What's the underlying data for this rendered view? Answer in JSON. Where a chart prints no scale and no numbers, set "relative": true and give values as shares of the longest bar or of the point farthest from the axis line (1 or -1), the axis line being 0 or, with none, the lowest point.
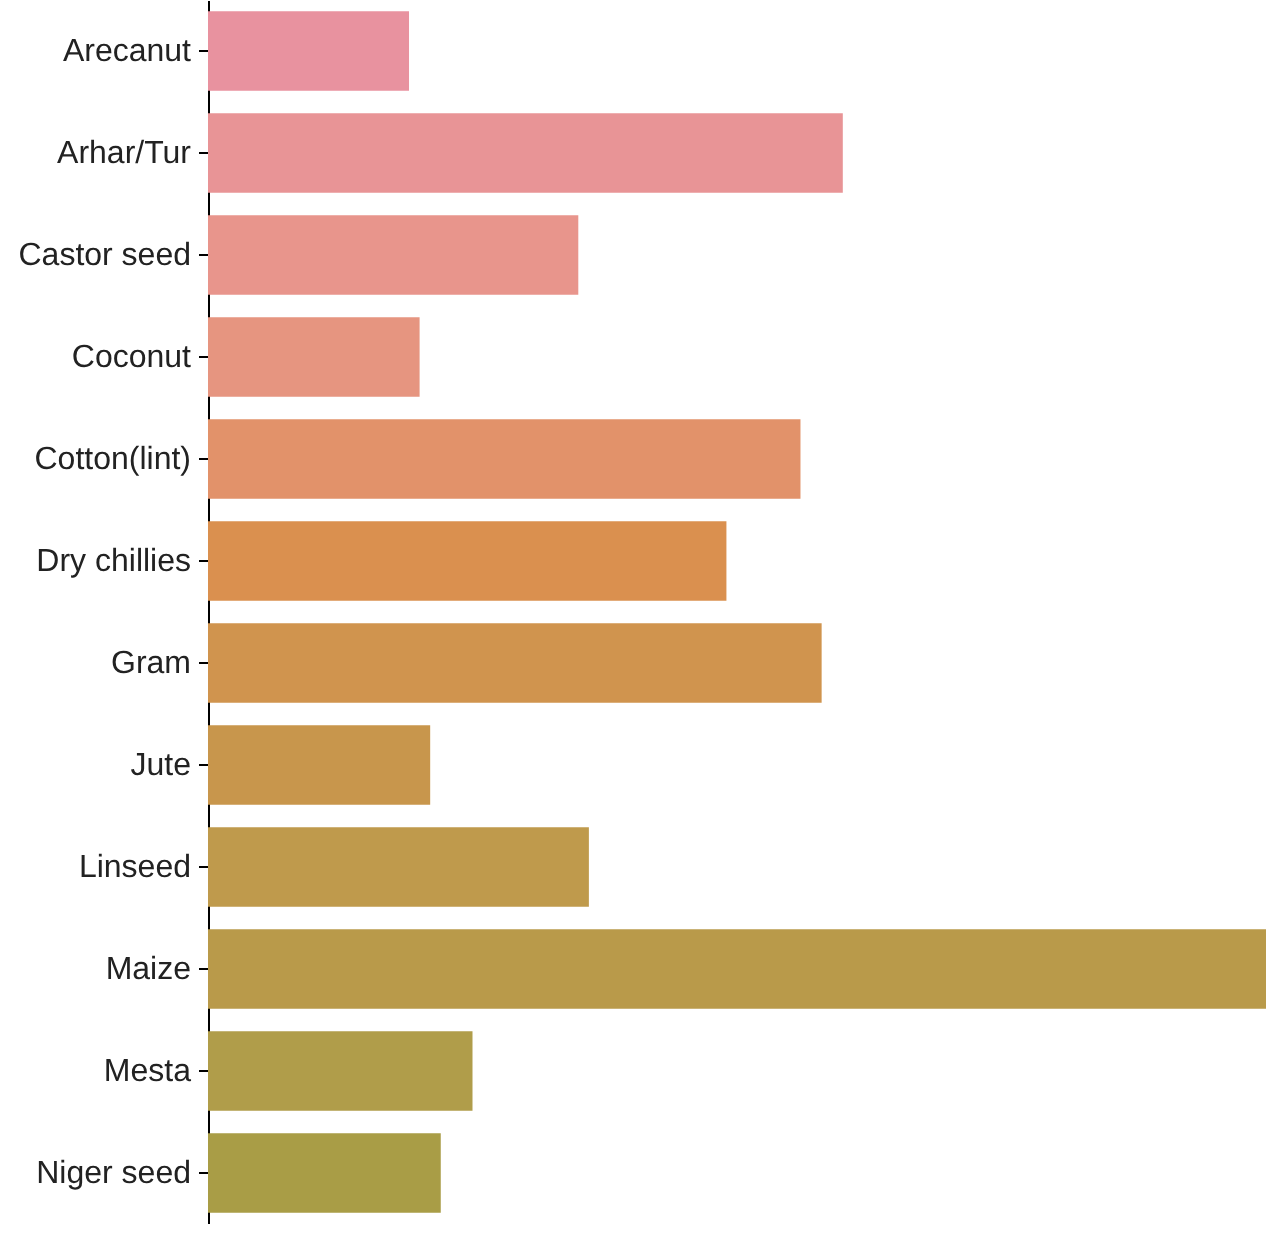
{
  "chart_data": {
    "type": "bar",
    "orientation": "horizontal",
    "relative": true,
    "categories": [
      "Arecanut",
      "Arhar/Tur",
      "Castor seed",
      "Coconut ",
      "Cotton(lint)",
      "Dry chillies",
      "Gram",
      "Jute",
      "Linseed",
      "Maize",
      "Mesta",
      "Niger seed"
    ],
    "values": [
      0.19,
      0.6,
      0.35,
      0.2,
      0.56,
      0.49,
      0.58,
      0.21,
      0.36,
      1,
      0.25,
      0.22
    ],
    "colors": [
      "#e8929f",
      "#e89496",
      "#e8958c",
      "#e69580",
      "#e2926a",
      "#da904f",
      "#d0944e",
      "#c8964c",
      "#bf9a4c",
      "#b99a4a",
      "#b09d4a",
      "#a99d46"
    ]
  }
}
